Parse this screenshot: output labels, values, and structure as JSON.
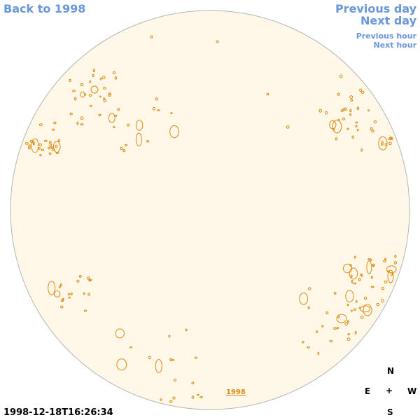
{
  "nav": {
    "back": "Back to 1998",
    "previous_day": "Previous day",
    "next_day": "Next day",
    "previous_hour": "Previous hour",
    "next_hour": "Next hour"
  },
  "timestamp": "1998-12-18T16:26:34",
  "year_label": "1998",
  "compass": {
    "n": "N",
    "e": "E",
    "center": "+",
    "w": "W",
    "s": "S"
  },
  "colors": {
    "link": "#6a96dc",
    "disk_fill": "#fff8e8",
    "disk_edge": "#b4b4b4",
    "contour": "#e08a10"
  }
}
